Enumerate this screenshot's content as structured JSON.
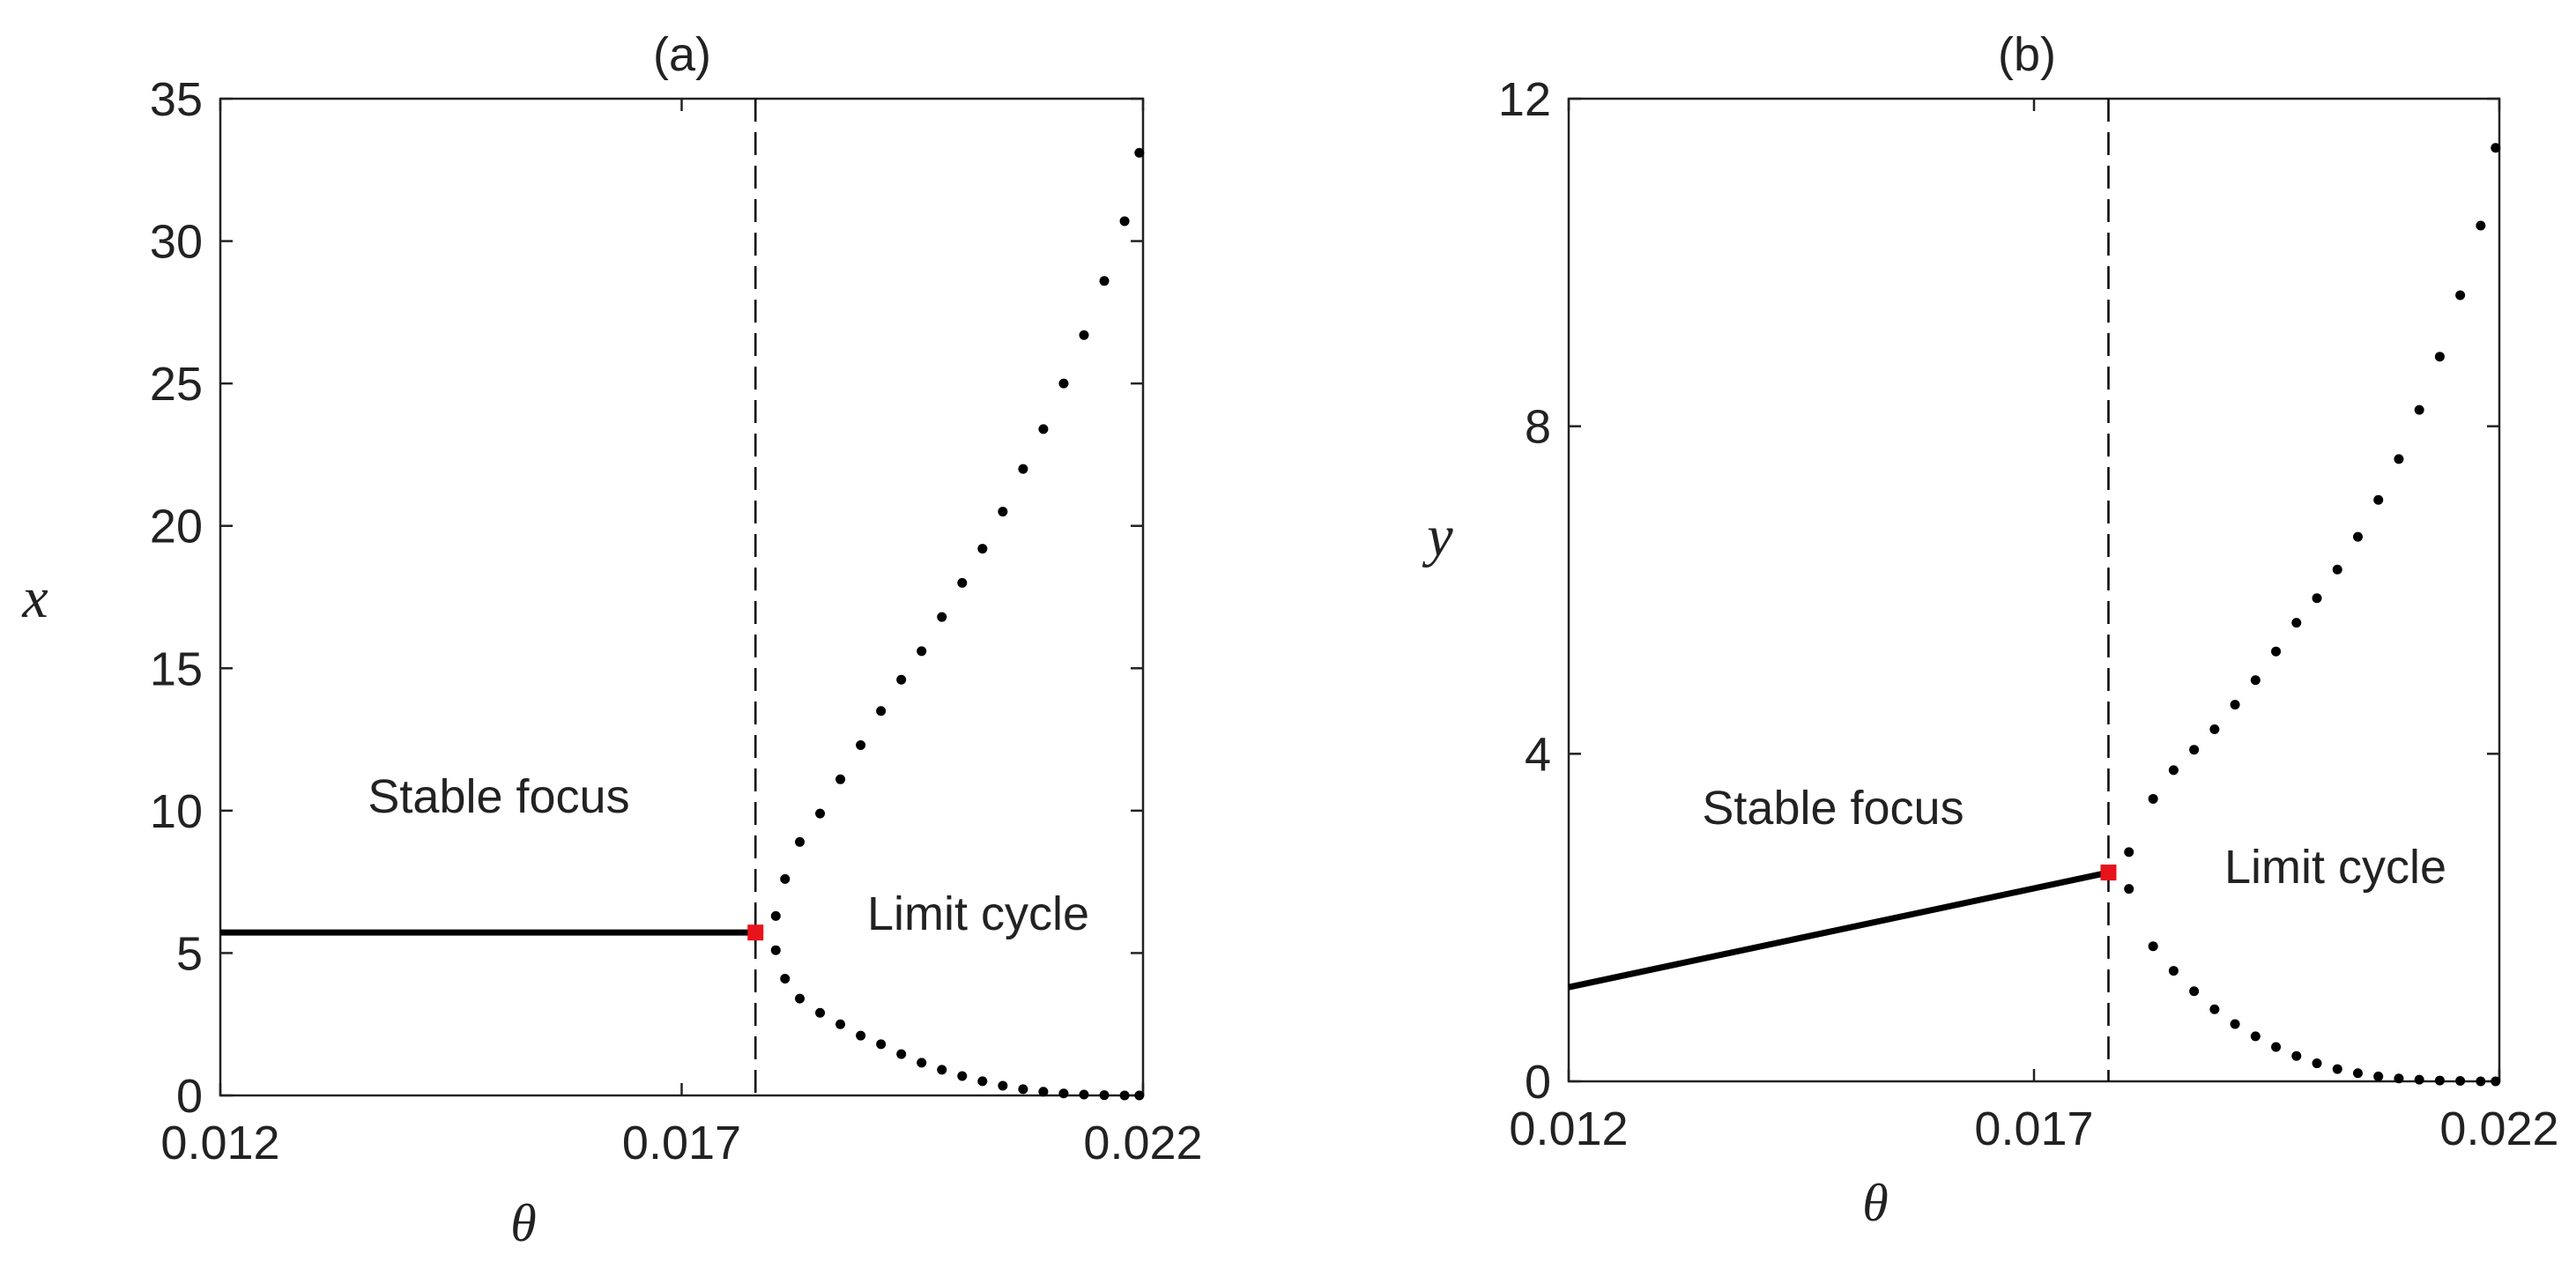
{
  "colors": {
    "axis": "#222222",
    "series": "#000000",
    "hopf": "#e8141b"
  },
  "chart_data": [
    {
      "type": "line",
      "title": "(a)",
      "xlabel": "θ",
      "ylabel": "x",
      "xlim": [
        0.012,
        0.022
      ],
      "ylim": [
        0,
        35
      ],
      "xticks": [
        0.012,
        0.017,
        0.022
      ],
      "xtick_labels": [
        "0.012",
        "0.017",
        "0.022"
      ],
      "yticks": [
        0,
        5,
        10,
        15,
        20,
        25,
        30,
        35
      ],
      "ytick_labels": [
        "0",
        "5",
        "10",
        "15",
        "20",
        "25",
        "30",
        "35"
      ],
      "grid": false,
      "hopf_theta": 0.0178,
      "stable_branch": {
        "x": [
          0.012,
          0.0178
        ],
        "y": [
          5.72,
          5.72
        ]
      },
      "hopf_point": {
        "x": 0.0178,
        "y": 5.72
      },
      "series": [
        {
          "name": "limit cycle max",
          "x": [
            0.01802,
            0.01812,
            0.01828,
            0.0185,
            0.01872,
            0.01894,
            0.01916,
            0.01938,
            0.0196,
            0.01982,
            0.02004,
            0.02026,
            0.02048,
            0.0207,
            0.02092,
            0.02114,
            0.02136,
            0.02158,
            0.0218
          ],
          "y": [
            6.3,
            7.6,
            8.9,
            9.9,
            11.1,
            12.3,
            13.5,
            14.6,
            15.6,
            16.8,
            18.0,
            19.2,
            20.5,
            22.0,
            23.4,
            25.0,
            26.7,
            28.6,
            30.7
          ]
        },
        {
          "name": "limit cycle max tail",
          "x": [
            0.02196
          ],
          "y": [
            33.1
          ]
        },
        {
          "name": "limit cycle min",
          "x": [
            0.01802,
            0.01812,
            0.01828,
            0.0185,
            0.01872,
            0.01894,
            0.01916,
            0.01938,
            0.0196,
            0.01982,
            0.02004,
            0.02026,
            0.02048,
            0.0207,
            0.02092,
            0.02114,
            0.02136,
            0.02158,
            0.0218,
            0.02196
          ],
          "y": [
            5.1,
            4.1,
            3.4,
            2.9,
            2.5,
            2.1,
            1.8,
            1.45,
            1.15,
            0.9,
            0.68,
            0.5,
            0.34,
            0.22,
            0.13,
            0.07,
            0.03,
            0.01,
            0.0,
            0.0
          ]
        }
      ],
      "annotations": [
        {
          "text": "Stable focus",
          "x": 0.0149,
          "y": 10.3
        },
        {
          "text": "Limit cycle",
          "x": 0.0199,
          "y": 6.4
        }
      ]
    },
    {
      "type": "line",
      "title": "(b)",
      "xlabel": "θ",
      "ylabel": "y",
      "xlim": [
        0.012,
        0.022
      ],
      "ylim": [
        0,
        12
      ],
      "xticks": [
        0.012,
        0.017,
        0.022
      ],
      "xtick_labels": [
        "0.012",
        "0.017",
        "0.022"
      ],
      "yticks": [
        0,
        4,
        8,
        12
      ],
      "ytick_labels": [
        "0",
        "4",
        "8",
        "12"
      ],
      "grid": false,
      "hopf_theta": 0.0178,
      "stable_branch": {
        "x": [
          0.012,
          0.0178
        ],
        "y": [
          1.15,
          2.55
        ]
      },
      "hopf_point": {
        "x": 0.0178,
        "y": 2.55
      },
      "series": [
        {
          "name": "limit cycle max",
          "x": [
            0.01802,
            0.01828,
            0.0185,
            0.01872,
            0.01894,
            0.01916,
            0.01938,
            0.0196,
            0.01982,
            0.02004,
            0.02026,
            0.02048,
            0.0207,
            0.02092,
            0.02114,
            0.02136,
            0.02158,
            0.0218,
            0.02196
          ],
          "y": [
            2.8,
            3.45,
            3.8,
            4.05,
            4.3,
            4.6,
            4.9,
            5.25,
            5.6,
            5.9,
            6.25,
            6.65,
            7.1,
            7.6,
            8.2,
            8.85,
            9.6,
            10.45,
            11.4
          ]
        },
        {
          "name": "limit cycle min",
          "x": [
            0.01802,
            0.01828,
            0.0185,
            0.01872,
            0.01894,
            0.01916,
            0.01938,
            0.0196,
            0.01982,
            0.02004,
            0.02026,
            0.02048,
            0.0207,
            0.02092,
            0.02114,
            0.02136,
            0.02158,
            0.0218,
            0.02196
          ],
          "y": [
            2.35,
            1.65,
            1.35,
            1.1,
            0.88,
            0.7,
            0.55,
            0.42,
            0.31,
            0.22,
            0.15,
            0.1,
            0.06,
            0.035,
            0.02,
            0.01,
            0.005,
            0.0,
            0.0
          ]
        }
      ],
      "annotations": [
        {
          "text": "Stable focus",
          "x": 0.0134,
          "y": 3.3
        },
        {
          "text": "Limit cycle",
          "x": 0.019,
          "y": 2.55
        }
      ]
    }
  ]
}
